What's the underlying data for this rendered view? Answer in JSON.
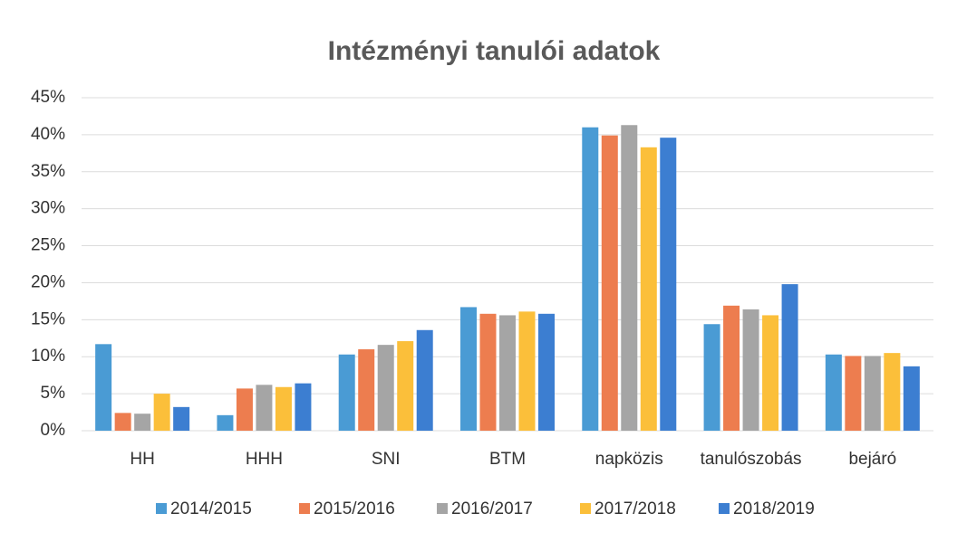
{
  "chart_data": {
    "type": "bar",
    "title": "Intézményi tanulói adatok",
    "categories": [
      "HH",
      "HHH",
      "SNI",
      "BTM",
      "napközis",
      "tanulószobás",
      "bejáró"
    ],
    "series": [
      {
        "name": "2014/2015",
        "color": "#4a9bd4",
        "values": [
          11.7,
          2.1,
          10.3,
          16.7,
          41.0,
          14.4,
          10.3
        ]
      },
      {
        "name": "2015/2016",
        "color": "#ed7d4f",
        "values": [
          2.4,
          5.7,
          11.0,
          15.8,
          39.9,
          16.9,
          10.1
        ]
      },
      {
        "name": "2016/2017",
        "color": "#a5a5a5",
        "values": [
          2.3,
          6.2,
          11.6,
          15.6,
          41.3,
          16.4,
          10.1
        ]
      },
      {
        "name": "2017/2018",
        "color": "#fbbf3a",
        "values": [
          5.0,
          5.9,
          12.1,
          16.1,
          38.3,
          15.6,
          10.5
        ]
      },
      {
        "name": "2018/2019",
        "color": "#3c7ed1",
        "values": [
          3.2,
          6.4,
          13.6,
          15.8,
          39.6,
          19.8,
          8.7
        ]
      }
    ],
    "ylim": [
      0,
      45
    ],
    "yticks": [
      {
        "value": 0,
        "label": "0%"
      },
      {
        "value": 5,
        "label": "5%"
      },
      {
        "value": 10,
        "label": "10%"
      },
      {
        "value": 15,
        "label": "15%"
      },
      {
        "value": 20,
        "label": "20%"
      },
      {
        "value": 25,
        "label": "25%"
      },
      {
        "value": 30,
        "label": "30%"
      },
      {
        "value": 35,
        "label": "35%"
      },
      {
        "value": 40,
        "label": "40%"
      },
      {
        "value": 45,
        "label": "45%"
      }
    ],
    "grid": true,
    "legend": "bottom"
  }
}
